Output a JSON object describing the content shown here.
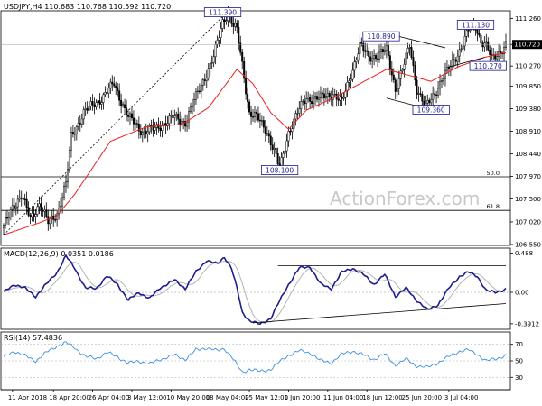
{
  "header": {
    "symbol": "USDJPY,H4",
    "o": "110.683",
    "h": "110.768",
    "l": "110.592",
    "c": "110.720",
    "macd_label": "MACD(12,26,9)",
    "macd_main": "0.0351",
    "macd_signal": "0.0186",
    "rsi_label": "RSI(14)",
    "rsi_value": "57.4836"
  },
  "watermark": "ActionForex.com",
  "colors": {
    "candle": "#000000",
    "ma": "#e8231f",
    "trendline": "#000000",
    "macd_main": "#1d1d8f",
    "macd_signal": "#b4b4b4",
    "rsi": "#3d8fe0",
    "label_border": "#1d1d8f",
    "label_text": "#1d1d8f",
    "watermark": "#c8c8c8",
    "grid_level": "#000000",
    "price_tag_bg": "#000000",
    "price_tag_text": "#ffffff"
  },
  "chart_data": {
    "type": "candlestick",
    "price": {
      "ylim": [
        106.53,
        111.42
      ],
      "ticks": [
        "111.260",
        "110.720",
        "110.270",
        "109.850",
        "109.380",
        "108.910",
        "108.440",
        "107.970",
        "107.500",
        "107.020",
        "106.550"
      ],
      "tick_values": [
        111.26,
        110.72,
        110.27,
        109.85,
        109.38,
        108.91,
        108.44,
        107.97,
        107.5,
        107.02,
        106.55
      ],
      "current_price": "110.720",
      "current_value": 110.72,
      "path_anchors": [
        [
          0,
          106.9
        ],
        [
          5,
          107.35
        ],
        [
          10,
          107.55
        ],
        [
          15,
          107.1
        ],
        [
          20,
          107.4
        ],
        [
          25,
          107.0
        ],
        [
          30,
          107.2
        ],
        [
          35,
          107.8
        ],
        [
          38,
          108.8
        ],
        [
          45,
          109.3
        ],
        [
          55,
          109.6
        ],
        [
          62,
          109.9
        ],
        [
          70,
          109.2
        ],
        [
          78,
          108.9
        ],
        [
          85,
          108.95
        ],
        [
          95,
          109.2
        ],
        [
          102,
          109.1
        ],
        [
          110,
          109.8
        ],
        [
          118,
          110.45
        ],
        [
          123,
          111.2
        ],
        [
          126,
          111.4
        ],
        [
          129,
          111.1
        ],
        [
          131,
          111.0
        ],
        [
          134,
          110.3
        ],
        [
          138,
          109.3
        ],
        [
          142,
          109.2
        ],
        [
          148,
          108.9
        ],
        [
          152,
          108.5
        ],
        [
          155,
          108.1
        ],
        [
          160,
          108.9
        ],
        [
          165,
          109.3
        ],
        [
          170,
          109.6
        ],
        [
          178,
          109.6
        ],
        [
          185,
          109.7
        ],
        [
          190,
          109.5
        ],
        [
          195,
          110.1
        ],
        [
          200,
          110.7
        ],
        [
          205,
          110.45
        ],
        [
          210,
          110.5
        ],
        [
          215,
          110.6
        ],
        [
          220,
          109.8
        ],
        [
          225,
          110.3
        ],
        [
          228,
          110.7
        ],
        [
          232,
          109.8
        ],
        [
          237,
          109.4
        ],
        [
          242,
          109.7
        ],
        [
          246,
          110.0
        ],
        [
          250,
          110.2
        ],
        [
          256,
          110.6
        ],
        [
          261,
          111.0
        ],
        [
          265,
          111.1
        ],
        [
          268,
          110.8
        ],
        [
          271,
          110.7
        ],
        [
          274,
          110.4
        ],
        [
          278,
          110.55
        ],
        [
          282,
          110.72
        ]
      ],
      "ma_anchors": [
        [
          0,
          106.75
        ],
        [
          20,
          107.0
        ],
        [
          30,
          107.15
        ],
        [
          40,
          107.6
        ],
        [
          60,
          108.7
        ],
        [
          80,
          109.0
        ],
        [
          100,
          109.05
        ],
        [
          115,
          109.4
        ],
        [
          125,
          109.9
        ],
        [
          131,
          110.2
        ],
        [
          140,
          109.9
        ],
        [
          150,
          109.3
        ],
        [
          160,
          108.95
        ],
        [
          170,
          109.35
        ],
        [
          185,
          109.6
        ],
        [
          200,
          109.9
        ],
        [
          215,
          110.2
        ],
        [
          225,
          110.1
        ],
        [
          240,
          109.95
        ],
        [
          255,
          110.25
        ],
        [
          270,
          110.45
        ],
        [
          282,
          110.55
        ]
      ],
      "levels": [
        {
          "label": "50.0",
          "value": 107.96
        },
        {
          "label": "61.8",
          "value": 107.26
        }
      ],
      "labels": [
        {
          "text": "111.390",
          "index": 123,
          "value": 111.39
        },
        {
          "text": "108.100",
          "index": 155,
          "value": 108.1
        },
        {
          "text": "110.890",
          "index": 212,
          "value": 110.89
        },
        {
          "text": "109.360",
          "index": 240,
          "value": 109.36
        },
        {
          "text": "111.130",
          "index": 265,
          "value": 111.13
        },
        {
          "text": "110.270",
          "index": 272,
          "value": 110.27
        }
      ],
      "trendlines": [
        {
          "from": [
            0,
            106.75
          ],
          "to": [
            123,
            111.3
          ],
          "dashed": true
        },
        {
          "from": [
            215,
            110.95
          ],
          "to": [
            248,
            110.65
          ],
          "dashed": false
        },
        {
          "from": [
            215,
            109.6
          ],
          "to": [
            248,
            109.28
          ],
          "dashed": false
        },
        {
          "from": [
            250,
            110.25
          ],
          "to": [
            270,
            110.45
          ],
          "dashed": false
        }
      ]
    },
    "macd": {
      "ylim": [
        -0.46,
        0.55
      ],
      "ticks": [
        "0.488",
        "0.00",
        "-0.3912"
      ],
      "tick_values": [
        0.488,
        0.0,
        -0.3912
      ],
      "main_anchors": [
        [
          0,
          0.0
        ],
        [
          6,
          0.1
        ],
        [
          12,
          0.05
        ],
        [
          18,
          -0.05
        ],
        [
          24,
          0.1
        ],
        [
          30,
          0.25
        ],
        [
          35,
          0.45
        ],
        [
          40,
          0.3
        ],
        [
          46,
          0.05
        ],
        [
          52,
          0.05
        ],
        [
          58,
          0.2
        ],
        [
          64,
          0.1
        ],
        [
          70,
          -0.1
        ],
        [
          76,
          0.0
        ],
        [
          82,
          -0.08
        ],
        [
          88,
          0.06
        ],
        [
          96,
          0.15
        ],
        [
          102,
          0.05
        ],
        [
          108,
          0.25
        ],
        [
          114,
          0.4
        ],
        [
          120,
          0.35
        ],
        [
          124,
          0.44
        ],
        [
          128,
          0.3
        ],
        [
          131,
          0.05
        ],
        [
          134,
          -0.25
        ],
        [
          138,
          -0.35
        ],
        [
          144,
          -0.4
        ],
        [
          150,
          -0.32
        ],
        [
          154,
          -0.15
        ],
        [
          160,
          0.1
        ],
        [
          166,
          0.3
        ],
        [
          172,
          0.32
        ],
        [
          178,
          0.1
        ],
        [
          184,
          0.05
        ],
        [
          190,
          0.25
        ],
        [
          196,
          0.3
        ],
        [
          202,
          0.22
        ],
        [
          208,
          0.1
        ],
        [
          214,
          0.22
        ],
        [
          220,
          -0.05
        ],
        [
          226,
          0.05
        ],
        [
          232,
          -0.1
        ],
        [
          238,
          -0.22
        ],
        [
          244,
          -0.15
        ],
        [
          250,
          0.05
        ],
        [
          256,
          0.2
        ],
        [
          261,
          0.25
        ],
        [
          266,
          0.2
        ],
        [
          271,
          0.02
        ],
        [
          276,
          0.0
        ],
        [
          282,
          0.04
        ]
      ],
      "trendlines": [
        {
          "from": [
            154,
            0.33
          ],
          "to": [
            282,
            0.33
          ]
        },
        {
          "from": [
            140,
            -0.38
          ],
          "to": [
            282,
            -0.14
          ]
        }
      ]
    },
    "rsi": {
      "ylim": [
        15,
        85
      ],
      "ticks": [
        "70",
        "50",
        "30"
      ],
      "tick_values": [
        70,
        50,
        30
      ],
      "anchors": [
        [
          0,
          54
        ],
        [
          6,
          62
        ],
        [
          12,
          56
        ],
        [
          18,
          50
        ],
        [
          24,
          60
        ],
        [
          30,
          68
        ],
        [
          35,
          72
        ],
        [
          40,
          66
        ],
        [
          46,
          55
        ],
        [
          52,
          53
        ],
        [
          58,
          60
        ],
        [
          64,
          55
        ],
        [
          70,
          47
        ],
        [
          76,
          50
        ],
        [
          82,
          46
        ],
        [
          88,
          52
        ],
        [
          96,
          57
        ],
        [
          102,
          52
        ],
        [
          108,
          63
        ],
        [
          114,
          66
        ],
        [
          120,
          62
        ],
        [
          124,
          65
        ],
        [
          128,
          55
        ],
        [
          131,
          45
        ],
        [
          134,
          36
        ],
        [
          138,
          40
        ],
        [
          144,
          37
        ],
        [
          150,
          40
        ],
        [
          154,
          47
        ],
        [
          160,
          57
        ],
        [
          166,
          62
        ],
        [
          172,
          60
        ],
        [
          178,
          50
        ],
        [
          184,
          48
        ],
        [
          190,
          58
        ],
        [
          196,
          62
        ],
        [
          202,
          57
        ],
        [
          208,
          52
        ],
        [
          214,
          58
        ],
        [
          220,
          45
        ],
        [
          226,
          52
        ],
        [
          232,
          44
        ],
        [
          238,
          42
        ],
        [
          244,
          48
        ],
        [
          250,
          55
        ],
        [
          256,
          62
        ],
        [
          261,
          63
        ],
        [
          266,
          58
        ],
        [
          271,
          50
        ],
        [
          276,
          52
        ],
        [
          282,
          57
        ]
      ]
    },
    "x_axis": {
      "n_bars": 283,
      "ticks": [
        {
          "label": "11 Apr 2018",
          "index": 5
        },
        {
          "label": "18 Apr 20:00",
          "index": 28
        },
        {
          "label": "26 Apr 04:00",
          "index": 50
        },
        {
          "label": "3 May 12:00",
          "index": 72
        },
        {
          "label": "10 May 20:00",
          "index": 94
        },
        {
          "label": "18 May 04:00",
          "index": 116
        },
        {
          "label": "25 May 12:00",
          "index": 138
        },
        {
          "label": "1 Jun 20:00",
          "index": 160
        },
        {
          "label": "11 Jun 04:00",
          "index": 182
        },
        {
          "label": "18 Jun 12:00",
          "index": 204
        },
        {
          "label": "25 Jun 20:00",
          "index": 226
        },
        {
          "label": "3 Jul 04:00",
          "index": 250
        }
      ]
    }
  }
}
